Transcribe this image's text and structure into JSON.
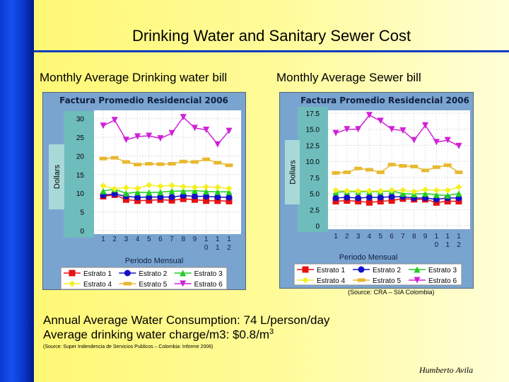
{
  "title": "Drinking Water and Sanitary Sewer Cost",
  "left_subtitle": "Monthly Average Drinking water bill",
  "right_subtitle": "Monthly Average Sewer bill",
  "right_source": "(Source: CRA – SIA Colombia)",
  "stat1": "Annual Average Water Consumption: 74 L/person/day",
  "stat2": "Average drinking water charge/m3: $0.8/m",
  "stat2_sup": "3",
  "stat_source": "(Source: Super Indendencia de Servicios Publicos – Colombia: Informe 2006)",
  "author": "Humberto Avila",
  "chart_data": [
    {
      "type": "line",
      "title": "Factura Promedio Residencial 2006",
      "xlabel": "Periodo Mensual",
      "ylabel": "Dollars",
      "categories": [
        "1",
        "2",
        "3",
        "4",
        "5",
        "6",
        "7",
        "8",
        "9",
        "10",
        "11",
        "12"
      ],
      "ylim": [
        0,
        30
      ],
      "yticks": [
        "0",
        "5",
        "10",
        "15",
        "20",
        "25",
        "30"
      ],
      "grid": true,
      "legend": "bottom",
      "series": [
        {
          "name": "Estrato 1",
          "color": "#e81010",
          "marker": "square",
          "values": [
            9.2,
            9.6,
            8.3,
            8.0,
            8.1,
            8.3,
            8.1,
            8.5,
            8.3,
            8.0,
            8.0,
            7.9
          ]
        },
        {
          "name": "Estrato 2",
          "color": "#1010c8",
          "marker": "circle",
          "values": [
            9.5,
            9.8,
            9.2,
            8.9,
            9.0,
            9.0,
            9.0,
            9.4,
            9.2,
            9.2,
            9.0,
            8.9
          ]
        },
        {
          "name": "Estrato 3",
          "color": "#22cc22",
          "marker": "triangle",
          "values": [
            10.6,
            11.1,
            10.0,
            10.3,
            10.2,
            10.3,
            10.6,
            10.6,
            10.7,
            10.5,
            10.4,
            10.4
          ]
        },
        {
          "name": "Estrato 4",
          "color": "#f4f020",
          "marker": "diamond",
          "values": [
            12.0,
            11.2,
            11.5,
            11.3,
            12.2,
            11.9,
            12.1,
            11.8,
            11.6,
            11.7,
            11.6,
            11.3
          ]
        },
        {
          "name": "Estrato 5",
          "color": "#e8b830",
          "marker": "rect",
          "values": [
            19.3,
            19.5,
            18.4,
            17.7,
            17.9,
            17.8,
            17.9,
            18.5,
            18.4,
            19.1,
            18.2,
            17.5
          ]
        },
        {
          "name": "Estrato 6",
          "color": "#d020d8",
          "marker": "triangle-down",
          "values": [
            28.1,
            29.6,
            24.3,
            25.2,
            25.4,
            24.7,
            26.1,
            30.4,
            27.5,
            27.0,
            23.1,
            26.7
          ]
        }
      ]
    },
    {
      "type": "line",
      "title": "Factura Promedio Residencial 2006",
      "xlabel": "Periodo Mensual",
      "ylabel": "Dollars",
      "categories": [
        "1",
        "2",
        "3",
        "4",
        "5",
        "6",
        "7",
        "8",
        "9",
        "10",
        "11",
        "12"
      ],
      "ylim": [
        0,
        17.5
      ],
      "yticks": [
        "0",
        "2.5",
        "5.0",
        "7.5",
        "10.0",
        "12.5",
        "15.0",
        "17.5"
      ],
      "grid": true,
      "legend": "bottom",
      "series": [
        {
          "name": "Estrato 1",
          "color": "#e81010",
          "marker": "square",
          "values": [
            3.8,
            3.9,
            3.8,
            3.6,
            3.8,
            3.9,
            4.2,
            4.1,
            4.1,
            3.6,
            3.8,
            3.8
          ]
        },
        {
          "name": "Estrato 2",
          "color": "#1010c8",
          "marker": "circle",
          "values": [
            4.3,
            4.4,
            4.3,
            4.4,
            4.4,
            4.5,
            4.5,
            4.3,
            4.3,
            4.1,
            4.3,
            4.3
          ]
        },
        {
          "name": "Estrato 3",
          "color": "#22cc22",
          "marker": "triangle",
          "values": [
            5.2,
            5.3,
            5.3,
            5.3,
            5.3,
            5.4,
            5.0,
            4.9,
            5.0,
            4.8,
            4.7,
            5.0
          ]
        },
        {
          "name": "Estrato 4",
          "color": "#f4f020",
          "marker": "diamond",
          "values": [
            5.5,
            5.4,
            5.4,
            5.4,
            5.4,
            5.5,
            5.5,
            5.3,
            5.6,
            5.5,
            5.5,
            6.0
          ]
        },
        {
          "name": "Estrato 5",
          "color": "#e8b830",
          "marker": "rect",
          "values": [
            8.2,
            8.3,
            8.9,
            8.7,
            8.3,
            9.5,
            9.3,
            9.2,
            8.6,
            9.1,
            9.4,
            8.3
          ]
        },
        {
          "name": "Estrato 6",
          "color": "#d020d8",
          "marker": "triangle-down",
          "values": [
            14.4,
            15.0,
            15.0,
            17.2,
            16.3,
            15.0,
            14.8,
            13.3,
            15.6,
            13.0,
            13.3,
            12.4
          ]
        }
      ]
    }
  ]
}
